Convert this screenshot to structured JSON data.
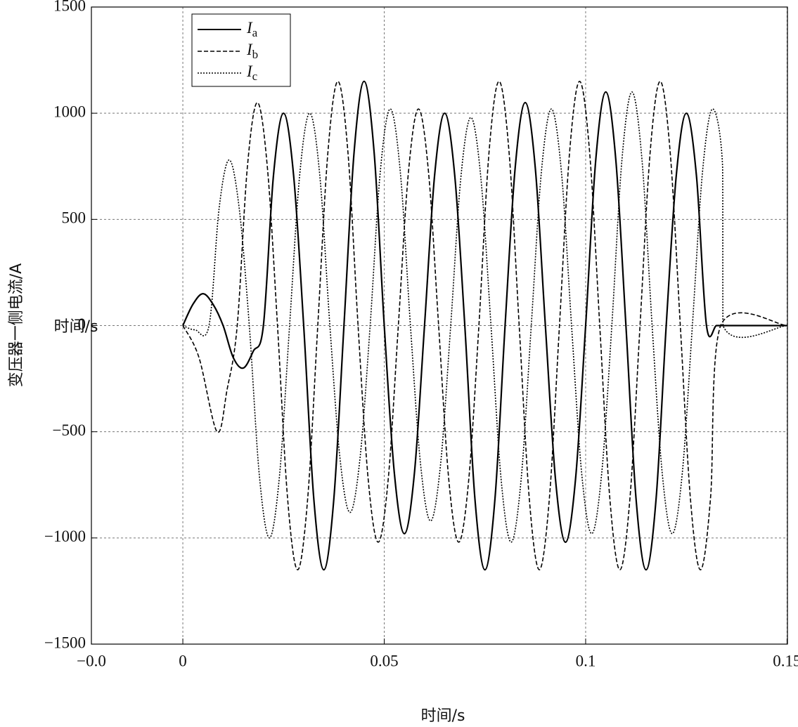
{
  "chart_data": {
    "type": "line",
    "xlabel": "时间/s",
    "ylabel": "变压器一侧电流/A",
    "annotation": "时间/s",
    "xlim": [
      -0.0227,
      0.1501
    ],
    "ylim": [
      -1500,
      1500
    ],
    "xticks": [
      {
        "value": -0.0227,
        "label": "−0.0"
      },
      0,
      0.05,
      0.1,
      0.15
    ],
    "yticks": [
      {
        "value": -1500,
        "label": "−1500"
      },
      {
        "value": -1000,
        "label": "−1000"
      },
      {
        "value": -500,
        "label": "−500"
      },
      0,
      500,
      1000,
      1500
    ],
    "grid": true,
    "legend": "upper left",
    "series": [
      {
        "name": "Ia",
        "color": "#000000",
        "dash": "solid",
        "x": [
          0,
          0.0025,
          0.005,
          0.0075,
          0.01,
          0.0125,
          0.015,
          0.0175,
          0.02,
          0.0225,
          0.025,
          0.0275,
          0.03,
          0.0325,
          0.035,
          0.0375,
          0.04,
          0.0425,
          0.045,
          0.0475,
          0.05,
          0.0525,
          0.055,
          0.0575,
          0.06,
          0.0625,
          0.065,
          0.0675,
          0.07,
          0.0725,
          0.075,
          0.0775,
          0.08,
          0.0825,
          0.085,
          0.0875,
          0.09,
          0.0925,
          0.095,
          0.0975,
          0.1,
          0.1025,
          0.105,
          0.1075,
          0.11,
          0.1125,
          0.115,
          0.1175,
          0.12,
          0.1225,
          0.125,
          0.1275,
          0.13,
          0.1325,
          0.135,
          0.1375,
          0.14,
          0.1425,
          0.145,
          0.1475,
          0.15
        ],
        "values": [
          0,
          100,
          150,
          100,
          0,
          -150,
          -200,
          -120,
          0,
          707,
          1000,
          707,
          0,
          -813,
          -1150,
          -813,
          0,
          813,
          1150,
          813,
          0,
          -693,
          -980,
          -693,
          0,
          707,
          1000,
          707,
          0,
          -813,
          -1150,
          -813,
          0,
          742,
          1050,
          742,
          0,
          -721,
          -1020,
          -721,
          0,
          778,
          1100,
          778,
          0,
          -813,
          -1150,
          -813,
          0,
          707,
          1000,
          707,
          0,
          0,
          0,
          0,
          0,
          0,
          0,
          0,
          0
        ]
      },
      {
        "name": "Ib",
        "color": "#000000",
        "dash": "dashed",
        "x": [
          0,
          0.004,
          0.0085,
          0.011,
          0.0135,
          0.016,
          0.0185,
          0.021,
          0.0235,
          0.026,
          0.0285,
          0.031,
          0.0335,
          0.036,
          0.0385,
          0.041,
          0.0435,
          0.046,
          0.0485,
          0.051,
          0.0535,
          0.056,
          0.0585,
          0.061,
          0.0635,
          0.066,
          0.0685,
          0.071,
          0.0735,
          0.076,
          0.0785,
          0.081,
          0.0835,
          0.086,
          0.0885,
          0.091,
          0.0935,
          0.096,
          0.0985,
          0.101,
          0.1035,
          0.106,
          0.1085,
          0.111,
          0.1135,
          0.116,
          0.1185,
          0.121,
          0.1235,
          0.126,
          0.1285,
          0.131,
          0.1335,
          0.15
        ],
        "values": [
          0,
          -150,
          -500,
          -300,
          0,
          742,
          1050,
          742,
          0,
          -813,
          -1150,
          -813,
          0,
          813,
          1150,
          813,
          0,
          -721,
          -1020,
          -721,
          0,
          721,
          1020,
          721,
          0,
          -721,
          -1020,
          -721,
          0,
          813,
          1150,
          813,
          0,
          -813,
          -1150,
          -813,
          0,
          813,
          1150,
          813,
          0,
          -813,
          -1150,
          -813,
          0,
          813,
          1150,
          813,
          0,
          -813,
          -1150,
          -813,
          0,
          0
        ]
      },
      {
        "name": "Ic",
        "color": "#000000",
        "dash": "dotted",
        "x": [
          0,
          0.003,
          0.0065,
          0.009,
          0.0115,
          0.014,
          0.0165,
          0.019,
          0.0215,
          0.024,
          0.0265,
          0.029,
          0.0315,
          0.034,
          0.0365,
          0.039,
          0.0415,
          0.044,
          0.0465,
          0.049,
          0.0515,
          0.054,
          0.0565,
          0.059,
          0.0615,
          0.064,
          0.0665,
          0.069,
          0.0715,
          0.074,
          0.0765,
          0.079,
          0.0815,
          0.084,
          0.0865,
          0.089,
          0.0915,
          0.094,
          0.0965,
          0.099,
          0.1015,
          0.104,
          0.1065,
          0.109,
          0.1115,
          0.114,
          0.1165,
          0.119,
          0.1215,
          0.124,
          0.1265,
          0.129,
          0.1315,
          0.134,
          0.1341,
          0.15
        ],
        "values": [
          0,
          -20,
          0,
          551,
          780,
          551,
          0,
          -707,
          -1000,
          -707,
          0,
          707,
          1000,
          707,
          0,
          -622,
          -880,
          -622,
          0,
          721,
          1020,
          721,
          0,
          -650,
          -920,
          -650,
          0,
          693,
          980,
          693,
          0,
          -721,
          -1020,
          -721,
          0,
          721,
          1020,
          721,
          0,
          -693,
          -980,
          -693,
          0,
          778,
          1100,
          778,
          0,
          -693,
          -980,
          -693,
          0,
          721,
          1020,
          750,
          0,
          0
        ]
      }
    ]
  }
}
